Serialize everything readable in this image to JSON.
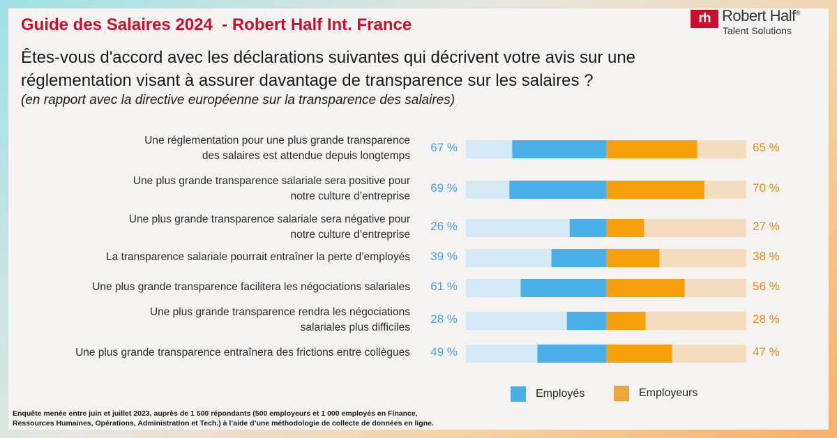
{
  "header": {
    "title": "Guide des Salaires 2024  - Robert Half Int. France",
    "logo": {
      "mark": "rh",
      "name": "Robert Half",
      "registered": "®",
      "subtitle": "Talent Solutions"
    }
  },
  "question": {
    "line1": "Êtes-vous d'accord avec les déclarations suivantes qui décrivent votre avis sur une",
    "line2": "réglementation visant à assurer davantage de transparence sur les salaires ?",
    "subtitle": "(en rapport avec la directive européenne sur la transparence des salaires)"
  },
  "colors": {
    "employes": "#4aaee8",
    "employes_light": "#d3e9f6",
    "employeurs": "#f5a00c",
    "employeurs_light": "#f4dcbf",
    "employes_text": "#4aa3e0",
    "employeurs_text": "#e08a14",
    "legend_employeurs": "#eda53c"
  },
  "chart_data": {
    "type": "bar",
    "orientation": "horizontal-diverging",
    "xlim": [
      -100,
      100
    ],
    "categories": [
      [
        "Une réglementation pour une plus grande transparence",
        "des salaires est attendue depuis longtemps"
      ],
      [
        "Une plus grande transparence salariale sera positive pour",
        "notre culture d’entreprise"
      ],
      [
        "Une plus grande transparence salariale sera négative pour",
        "notre culture d’entreprise"
      ],
      [
        "La transparence salariale pourrait entraîner la perte d’employés"
      ],
      [
        "Une plus grande transparence facilitera les négociations salariales"
      ],
      [
        "Une plus grande transparence rendra les négociations",
        "salariales plus difficiles"
      ],
      [
        "Une plus grande transparence entraînera des frictions entre collègues"
      ]
    ],
    "series": [
      {
        "name": "Employés",
        "values": [
          67,
          69,
          26,
          39,
          61,
          28,
          49
        ],
        "labels": [
          "67 %",
          "69 %",
          "26 %",
          "39 %",
          "61 %",
          "28 %",
          "49 %"
        ]
      },
      {
        "name": "Employeurs",
        "values": [
          65,
          70,
          27,
          38,
          56,
          28,
          47
        ],
        "labels": [
          "65 %",
          "70 %",
          "27 %",
          "38 %",
          "56 %",
          "28 %",
          "47 %"
        ]
      }
    ],
    "legend": "bottom-right"
  },
  "footnote": {
    "line1": "Enquête menée entre juin et juillet 2023, auprès de 1 500 répondants (500 employeurs et 1 000 employés en Finance,",
    "line2": "Ressources Humaines, Opérations, Administration et Tech.) à l’aide d’une méthodologie de collecte de données en ligne."
  }
}
